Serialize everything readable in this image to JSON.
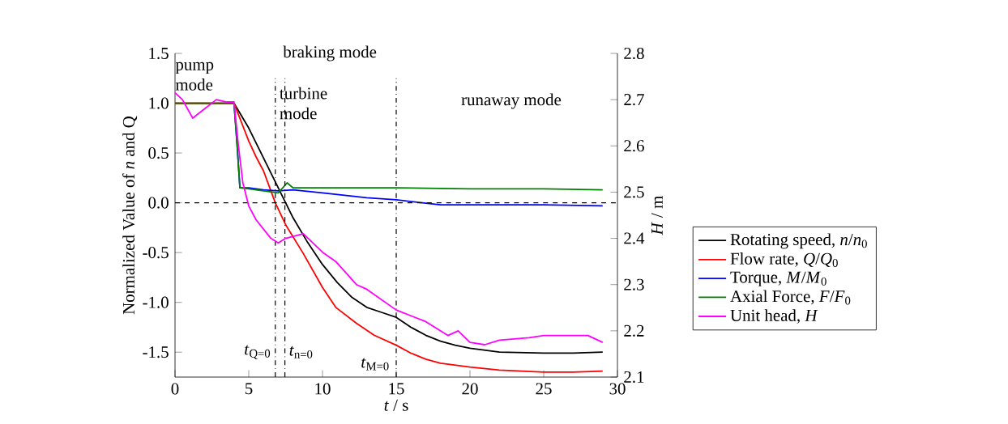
{
  "chart_data": {
    "type": "line",
    "xlabel": "*t* / s",
    "ylabel": "Normalized Value of *n* and Q",
    "y2label": "*H* / m",
    "xlim": [
      0,
      30
    ],
    "xticks": [
      0,
      5,
      10,
      15,
      20,
      25,
      30
    ],
    "ylim": [
      -1.75,
      1.5
    ],
    "yticks": [
      {
        "value": -1.5,
        "label": "-1.5"
      },
      {
        "value": -1,
        "label": "-1.0"
      },
      {
        "value": -0.5,
        "label": "-0.5"
      },
      {
        "value": 0,
        "label": "0.0"
      },
      {
        "value": 0.5,
        "label": "0.5"
      },
      {
        "value": 1,
        "label": "1.0"
      },
      {
        "value": 1.5,
        "label": "1.5"
      }
    ],
    "y2lim": [
      2.1,
      2.8
    ],
    "y2ticks": [
      2.1,
      2.2,
      2.3,
      2.4,
      2.5,
      2.6,
      2.7,
      2.8
    ],
    "legend": "right",
    "grid": false,
    "marker": "none",
    "line_style": "solid",
    "series": [
      {
        "name": "Rotating speed, *n*/*n*$_{0}$",
        "color": "#000000",
        "x": [
          0,
          2,
          4,
          5,
          6,
          7,
          7.5,
          8,
          9,
          10,
          11,
          12,
          13,
          14,
          15,
          16,
          17,
          18,
          19,
          20,
          22,
          25,
          27,
          29
        ],
        "values": [
          1,
          1,
          1,
          0.75,
          0.45,
          0.15,
          0,
          -0.15,
          -0.4,
          -0.62,
          -0.8,
          -0.95,
          -1.05,
          -1.1,
          -1.15,
          -1.25,
          -1.33,
          -1.39,
          -1.43,
          -1.46,
          -1.5,
          -1.51,
          -1.51,
          -1.5
        ]
      },
      {
        "name": "Flow rate, *Q*/*Q*$_{0}$",
        "color": "#ff0000",
        "x": [
          0,
          2,
          4,
          5,
          5.5,
          6,
          6.8,
          7.5,
          8.7,
          10,
          10.9,
          12.3,
          13.5,
          15,
          16,
          17,
          18,
          20,
          22,
          25,
          27,
          29
        ],
        "values": [
          1,
          1,
          1,
          0.62,
          0.46,
          0.32,
          0,
          -0.22,
          -0.51,
          -0.85,
          -1.05,
          -1.21,
          -1.33,
          -1.43,
          -1.51,
          -1.57,
          -1.61,
          -1.65,
          -1.68,
          -1.7,
          -1.7,
          -1.69
        ]
      },
      {
        "name": "Torque, *M*/*M*$_{0}$",
        "color": "#0000ff",
        "x": [
          4,
          4.2,
          4.4,
          5,
          6,
          7,
          8,
          10,
          13,
          15,
          18,
          21,
          25,
          29
        ],
        "values": [
          1,
          0.6,
          0.15,
          0.15,
          0.13,
          0.12,
          0.13,
          0.1,
          0.05,
          0.03,
          -0.02,
          -0.02,
          -0.02,
          -0.03
        ]
      },
      {
        "name": "Axial Force, *F*/*F*$_{0}$",
        "color": "#008000",
        "x": [
          0,
          2,
          4,
          4.2,
          4.4,
          5,
          6,
          7,
          7.6,
          8,
          10,
          15,
          20,
          25,
          29
        ],
        "values": [
          1,
          1,
          1,
          0.6,
          0.15,
          0.14,
          0.12,
          0.1,
          0.2,
          0.15,
          0.15,
          0.15,
          0.14,
          0.14,
          0.13
        ]
      },
      {
        "name": "Unit head, *H*",
        "color": "#ff00ff",
        "axis": "y2",
        "x": [
          0,
          0.5,
          1.2,
          2,
          2.8,
          3.5,
          4,
          4.3,
          4.6,
          5,
          5.5,
          6.5,
          7,
          7.5,
          8.7,
          10,
          10.9,
          12.3,
          13,
          15,
          17,
          18.5,
          19.2,
          20,
          21,
          22,
          24,
          25,
          26,
          28,
          29
        ],
        "values": [
          2.715,
          2.7,
          2.66,
          2.68,
          2.7,
          2.695,
          2.695,
          2.6,
          2.52,
          2.47,
          2.44,
          2.4,
          2.39,
          2.4,
          2.41,
          2.37,
          2.35,
          2.3,
          2.29,
          2.245,
          2.22,
          2.19,
          2.2,
          2.175,
          2.17,
          2.18,
          2.185,
          2.19,
          2.19,
          2.19,
          2.175
        ]
      }
    ],
    "ref_lines": [
      {
        "axis": "y",
        "value": 0,
        "line_style": "dashed",
        "color": "#000000"
      },
      {
        "axis": "x",
        "value": 6.8,
        "line_style": "dashdot",
        "color": "#000000"
      },
      {
        "axis": "x",
        "value": 7.45,
        "line_style": "dashdot",
        "color": "#000000"
      },
      {
        "axis": "x",
        "value": 15,
        "line_style": "dashdot",
        "color": "#000000"
      }
    ],
    "annotations": [
      "pump mode",
      "braking mode",
      "turbine mode",
      "runaway mode",
      "*t*$_{Q=0}$",
      "*t*$_{n=0}$",
      "*t*$_{M=0}$"
    ]
  }
}
